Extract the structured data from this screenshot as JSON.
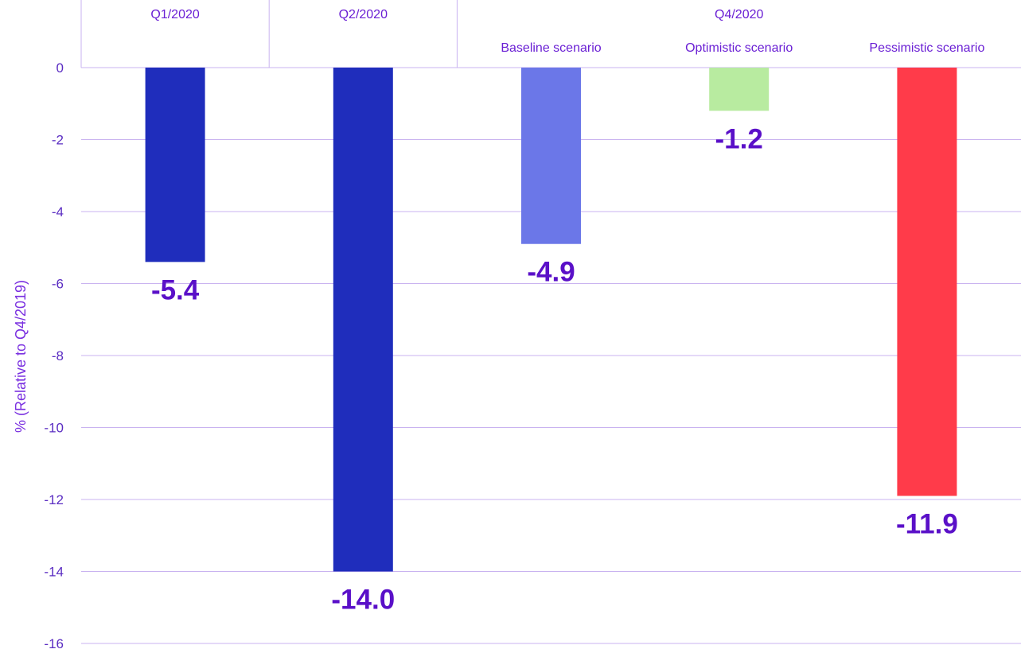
{
  "chart_data": {
    "type": "bar",
    "ylabel": "% (Relative to Q4/2019)",
    "ylim": [
      -16,
      0
    ],
    "yticks": [
      0,
      -2,
      -4,
      -6,
      -8,
      -10,
      -12,
      -14,
      -16
    ],
    "grid": true,
    "groups": [
      {
        "label": "Q1/2020",
        "categories": [
          ""
        ]
      },
      {
        "label": "Q2/2020",
        "categories": [
          ""
        ]
      },
      {
        "label": "Q4/2020",
        "categories": [
          "Baseline scenario",
          "Optimistic scenario",
          "Pessimistic scenario"
        ]
      }
    ],
    "values": [
      -5.4,
      -14.0,
      -4.9,
      -1.2,
      -11.9
    ],
    "value_labels": [
      "-5.4",
      "-14.0",
      "-4.9",
      "-1.2",
      "-11.9"
    ],
    "colors": [
      "#1f2dbc",
      "#1f2dbc",
      "#6b77e8",
      "#b8eba0",
      "#ff3b4a"
    ]
  }
}
